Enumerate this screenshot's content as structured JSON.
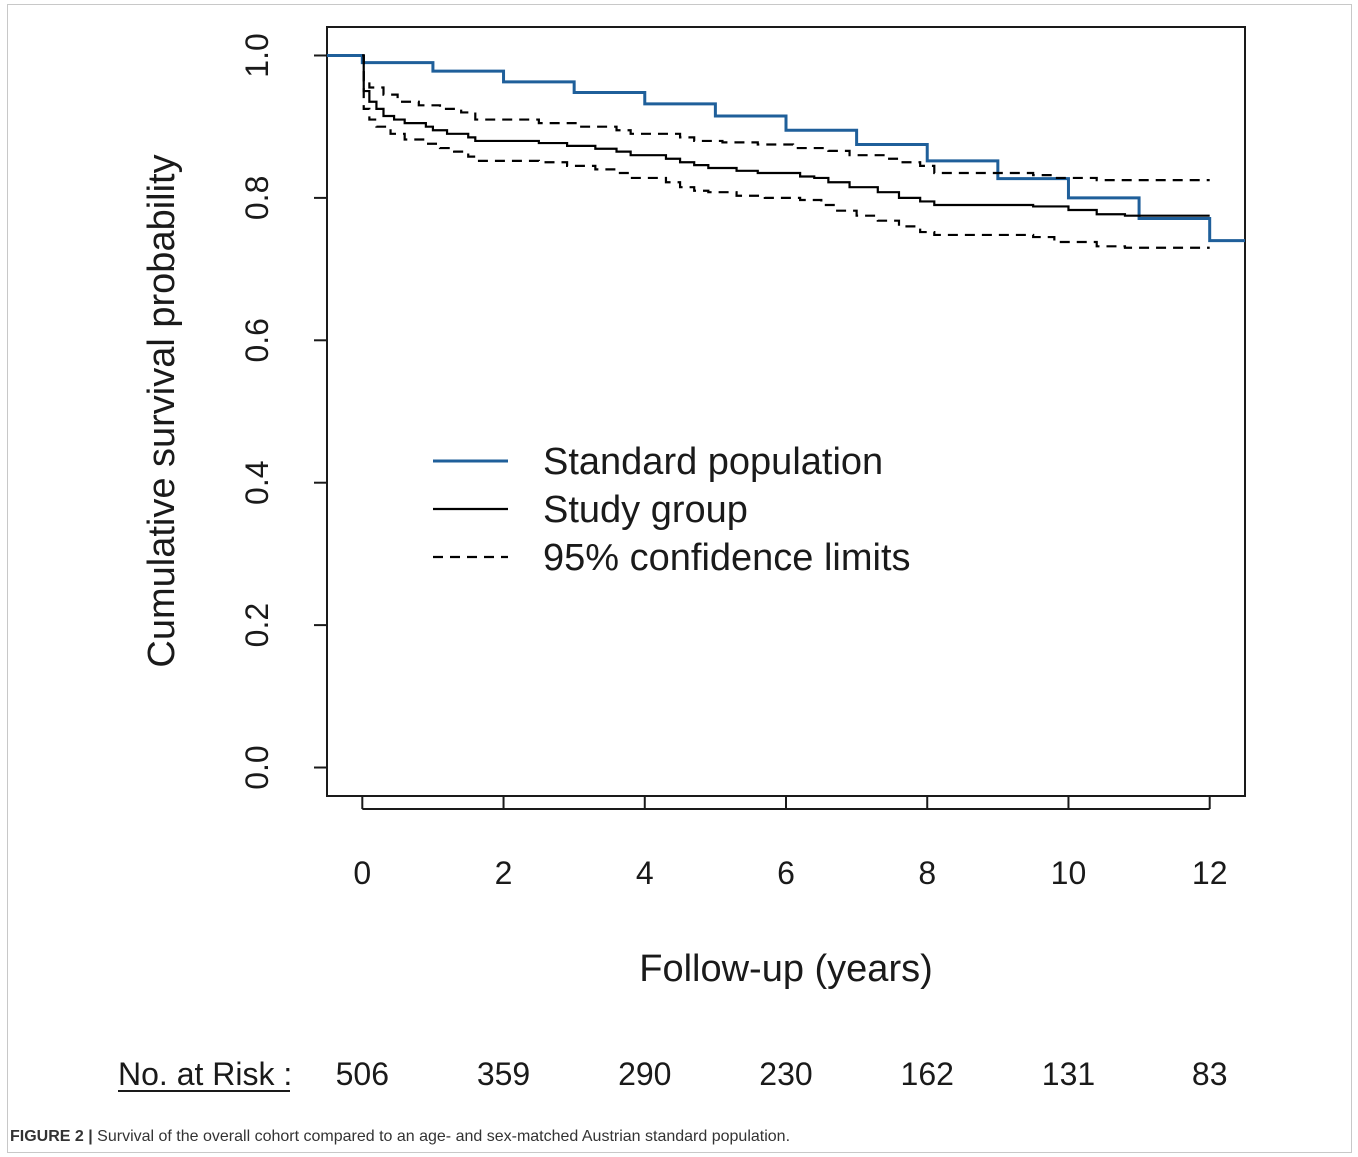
{
  "chart_data": {
    "type": "line",
    "title": "",
    "xlabel": "Follow-up (years)",
    "ylabel": "Cumulative survival probability",
    "xlim": [
      -0.5,
      12.5
    ],
    "ylim": [
      -0.04,
      1.04
    ],
    "xticks": [
      "0",
      "2",
      "4",
      "6",
      "8",
      "10",
      "12"
    ],
    "yticks": [
      "0.0",
      "0.2",
      "0.4",
      "0.6",
      "0.8",
      "1.0"
    ],
    "grid": false,
    "legend_position": "center",
    "legend": [
      "Standard population",
      "Study group",
      "95% confidence limits"
    ],
    "series": [
      {
        "name": "Standard population",
        "color": "#1f5f9a",
        "style": "step",
        "points": [
          [
            -0.5,
            1.0
          ],
          [
            0,
            0.99
          ],
          [
            1,
            0.978
          ],
          [
            2,
            0.963
          ],
          [
            3,
            0.948
          ],
          [
            4,
            0.932
          ],
          [
            5,
            0.915
          ],
          [
            6,
            0.895
          ],
          [
            7,
            0.875
          ],
          [
            8,
            0.852
          ],
          [
            9,
            0.827
          ],
          [
            10,
            0.8
          ],
          [
            11,
            0.771
          ],
          [
            12,
            0.74
          ],
          [
            12.5,
            0.74
          ]
        ]
      },
      {
        "name": "Study group",
        "color": "#000000",
        "style": "step",
        "points": [
          [
            0,
            1.0
          ],
          [
            0.02,
            0.95
          ],
          [
            0.1,
            0.935
          ],
          [
            0.2,
            0.925
          ],
          [
            0.3,
            0.915
          ],
          [
            0.45,
            0.91
          ],
          [
            0.6,
            0.905
          ],
          [
            0.9,
            0.9
          ],
          [
            1.0,
            0.895
          ],
          [
            1.2,
            0.89
          ],
          [
            1.5,
            0.885
          ],
          [
            1.6,
            0.88
          ],
          [
            2.5,
            0.877
          ],
          [
            2.9,
            0.873
          ],
          [
            3.3,
            0.869
          ],
          [
            3.6,
            0.865
          ],
          [
            3.8,
            0.86
          ],
          [
            4.3,
            0.855
          ],
          [
            4.5,
            0.85
          ],
          [
            4.7,
            0.846
          ],
          [
            4.9,
            0.842
          ],
          [
            5.3,
            0.838
          ],
          [
            5.6,
            0.835
          ],
          [
            6.2,
            0.83
          ],
          [
            6.4,
            0.828
          ],
          [
            6.6,
            0.822
          ],
          [
            6.9,
            0.815
          ],
          [
            7.3,
            0.808
          ],
          [
            7.6,
            0.8
          ],
          [
            7.9,
            0.795
          ],
          [
            8.1,
            0.79
          ],
          [
            9.5,
            0.788
          ],
          [
            10.0,
            0.783
          ],
          [
            10.4,
            0.777
          ],
          [
            10.8,
            0.775
          ],
          [
            12.0,
            0.775
          ]
        ]
      },
      {
        "name": "95% confidence limits",
        "color": "#000000",
        "style": "dashed-step",
        "points": [
          [
            0,
            1.0
          ],
          [
            0.02,
            0.965
          ],
          [
            0.1,
            0.955
          ],
          [
            0.3,
            0.945
          ],
          [
            0.5,
            0.935
          ],
          [
            0.8,
            0.93
          ],
          [
            1.1,
            0.925
          ],
          [
            1.4,
            0.92
          ],
          [
            1.6,
            0.91
          ],
          [
            2.5,
            0.905
          ],
          [
            3.1,
            0.9
          ],
          [
            3.6,
            0.895
          ],
          [
            3.8,
            0.89
          ],
          [
            4.5,
            0.885
          ],
          [
            4.7,
            0.88
          ],
          [
            5.1,
            0.878
          ],
          [
            5.6,
            0.875
          ],
          [
            6.1,
            0.87
          ],
          [
            6.6,
            0.866
          ],
          [
            6.9,
            0.86
          ],
          [
            7.4,
            0.855
          ],
          [
            7.6,
            0.85
          ],
          [
            7.9,
            0.845
          ],
          [
            8.1,
            0.835
          ],
          [
            9.5,
            0.832
          ],
          [
            9.8,
            0.828
          ],
          [
            10.4,
            0.825
          ],
          [
            12.0,
            0.825
          ]
        ]
      },
      {
        "name": "",
        "color": "#000000",
        "style": "dashed-step",
        "points": [
          [
            0,
            1.0
          ],
          [
            0.02,
            0.925
          ],
          [
            0.1,
            0.91
          ],
          [
            0.2,
            0.9
          ],
          [
            0.4,
            0.89
          ],
          [
            0.6,
            0.882
          ],
          [
            0.9,
            0.876
          ],
          [
            1.1,
            0.87
          ],
          [
            1.3,
            0.865
          ],
          [
            1.5,
            0.858
          ],
          [
            1.6,
            0.852
          ],
          [
            2.5,
            0.85
          ],
          [
            2.9,
            0.845
          ],
          [
            3.3,
            0.84
          ],
          [
            3.6,
            0.835
          ],
          [
            3.8,
            0.828
          ],
          [
            4.3,
            0.822
          ],
          [
            4.5,
            0.815
          ],
          [
            4.7,
            0.81
          ],
          [
            4.9,
            0.808
          ],
          [
            5.3,
            0.803
          ],
          [
            5.7,
            0.8
          ],
          [
            6.2,
            0.797
          ],
          [
            6.5,
            0.79
          ],
          [
            6.7,
            0.782
          ],
          [
            7.0,
            0.775
          ],
          [
            7.3,
            0.768
          ],
          [
            7.6,
            0.76
          ],
          [
            7.9,
            0.752
          ],
          [
            8.1,
            0.748
          ],
          [
            9.5,
            0.745
          ],
          [
            9.8,
            0.738
          ],
          [
            10.4,
            0.732
          ],
          [
            10.8,
            0.73
          ],
          [
            12.0,
            0.73
          ]
        ]
      }
    ],
    "risk_table": {
      "label": "No. at Risk :",
      "x": [
        0,
        2,
        4,
        6,
        8,
        10,
        12
      ],
      "values": [
        "506",
        "359",
        "290",
        "230",
        "162",
        "131",
        "83"
      ]
    }
  },
  "caption": {
    "label": "FIGURE 2 |",
    "text": " Survival of the overall cohort compared to an age- and sex-matched Austrian standard population."
  }
}
